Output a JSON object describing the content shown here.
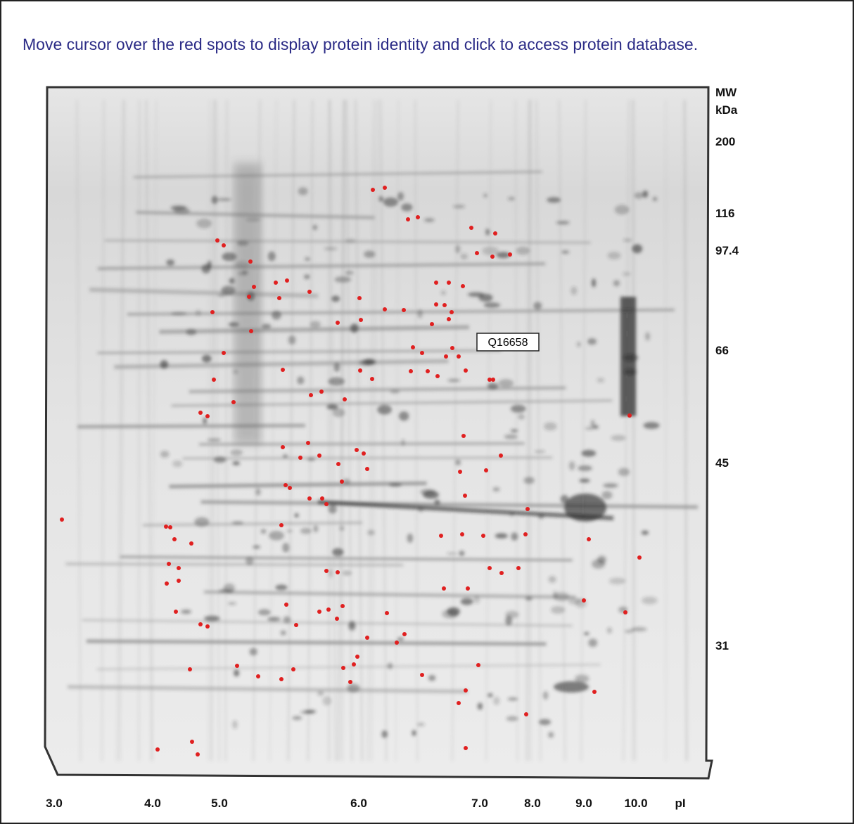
{
  "instruction": "Move cursor over the red spots to display protein identity and click to access protein database.",
  "mw_labels": [
    "MW",
    "kDa",
    "200",
    "116",
    "97.4",
    "66",
    "45",
    "31"
  ],
  "pi_labels": [
    "3.0",
    "4.0",
    "5.0",
    "6.0",
    "7.0",
    "8.0",
    "9.0",
    "10.0",
    "pI"
  ],
  "tooltip": "Q16658"
}
